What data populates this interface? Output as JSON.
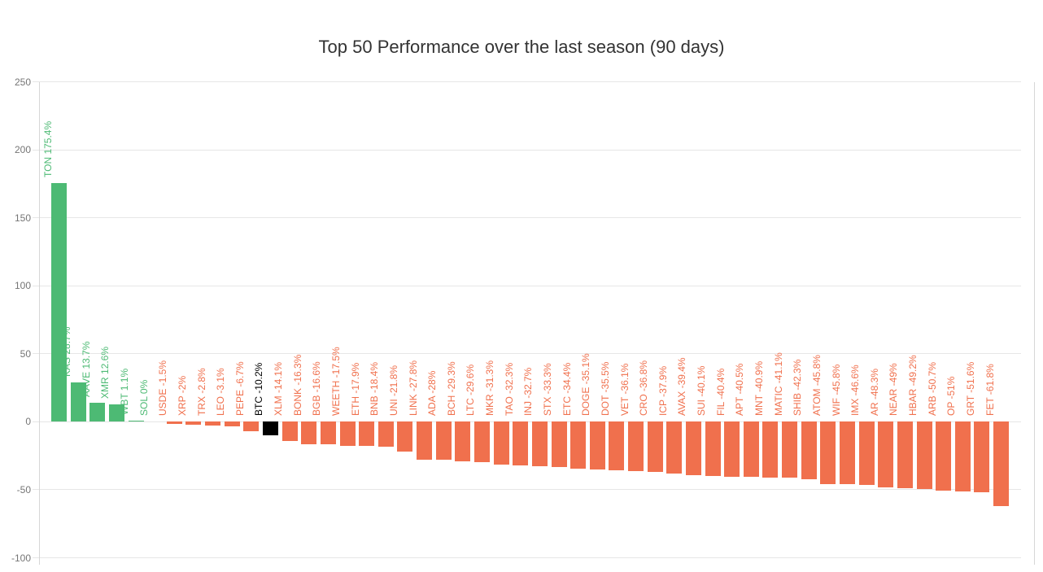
{
  "chart_data": {
    "type": "bar",
    "title": "Top 50 Performance over the last season (90 days)",
    "xlabel": "",
    "ylabel": "",
    "ylim": [
      -100,
      250
    ],
    "yticks": [
      250,
      200,
      150,
      100,
      50,
      0,
      -50,
      -100
    ],
    "grid": true,
    "legend": "none",
    "highlight_category": "BTC",
    "categories": [
      "TON",
      "KAS",
      "AAVE",
      "XMR",
      "WBT",
      "SOL",
      "USDE",
      "XRP",
      "TRX",
      "LEO",
      "PEPE",
      "BTC",
      "XLM",
      "BONK",
      "BGB",
      "WEETH",
      "ETH",
      "BNB",
      "UNI",
      "LINK",
      "ADA",
      "BCH",
      "LTC",
      "MKR",
      "TAO",
      "INJ",
      "STX",
      "ETC",
      "DOGE",
      "DOT",
      "VET",
      "CRO",
      "ICP",
      "AVAX",
      "SUI",
      "FIL",
      "APT",
      "MNT",
      "MATIC",
      "SHIB",
      "ATOM",
      "WIF",
      "IMX",
      "AR",
      "NEAR",
      "HBAR",
      "ARB",
      "OP",
      "GRT",
      "FET"
    ],
    "values": [
      175.4,
      28.7,
      13.7,
      12.6,
      1.1,
      0,
      -1.5,
      -2,
      -2.8,
      -3.1,
      -6.7,
      -10.2,
      -14.1,
      -16.3,
      -16.6,
      -17.5,
      -17.9,
      -18.4,
      -21.8,
      -27.8,
      -28,
      -29.3,
      -29.6,
      -31.3,
      -32.3,
      -32.7,
      -33.3,
      -34.4,
      -35.1,
      -35.5,
      -36.1,
      -36.8,
      -37.9,
      -39.4,
      -40.1,
      -40.4,
      -40.5,
      -40.9,
      -41.1,
      -42.3,
      -45.8,
      -45.8,
      -46.6,
      -48.3,
      -49,
      -49.2,
      -50.7,
      -51,
      -51.6,
      -61.8
    ],
    "bar_labels": [
      "TON 175.4%",
      "KAS 28.7%",
      "AAVE 13.7%",
      "XMR 12.6%",
      "WBT 1.1%",
      "SOL 0%",
      "USDE -1.5%",
      "XRP -2%",
      "TRX -2.8%",
      "LEO -3.1%",
      "PEPE -6.7%",
      "BTC -10.2%",
      "XLM -14.1%",
      "BONK -16.3%",
      "BGB -16.6%",
      "WEETH -17.5%",
      "ETH -17.9%",
      "BNB -18.4%",
      "UNI -21.8%",
      "LINK -27.8%",
      "ADA -28%",
      "BCH -29.3%",
      "LTC -29.6%",
      "MKR -31.3%",
      "TAO -32.3%",
      "INJ -32.7%",
      "STX -33.3%",
      "ETC -34.4%",
      "DOGE -35.1%",
      "DOT -35.5%",
      "VET -36.1%",
      "CRO -36.8%",
      "ICP -37.9%",
      "AVAX -39.4%",
      "SUI -40.1%",
      "FIL -40.4%",
      "APT -40.5%",
      "MNT -40.9%",
      "MATIC -41.1%",
      "SHIB -42.3%",
      "ATOM -45.8%",
      "WIF -45.8%",
      "IMX -46.6%",
      "AR -48.3%",
      "NEAR -49%",
      "HBAR -49.2%",
      "ARB -50.7%",
      "OP -51%",
      "GRT -51.6%",
      "FET -61.8%"
    ],
    "colors": {
      "positive": "#4dba74",
      "negative": "#f0704d",
      "highlight": "#000000",
      "grid": "#e6e6e6",
      "axis": "#d6d6d6",
      "tick_text": "#757575",
      "title_text": "#333333"
    }
  }
}
